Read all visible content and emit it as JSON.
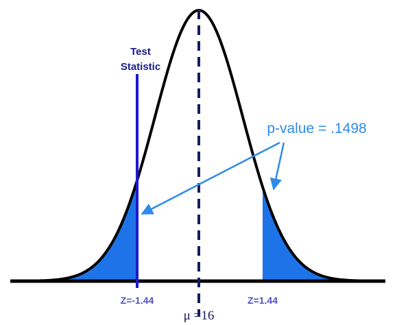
{
  "labels": {
    "test_statistic": [
      "Test",
      "Statistic"
    ],
    "p_value": "p-value = .1498",
    "z_left": "Z=-1.44",
    "z_right": "Z=1.44",
    "mu": "μ =16"
  }
}
